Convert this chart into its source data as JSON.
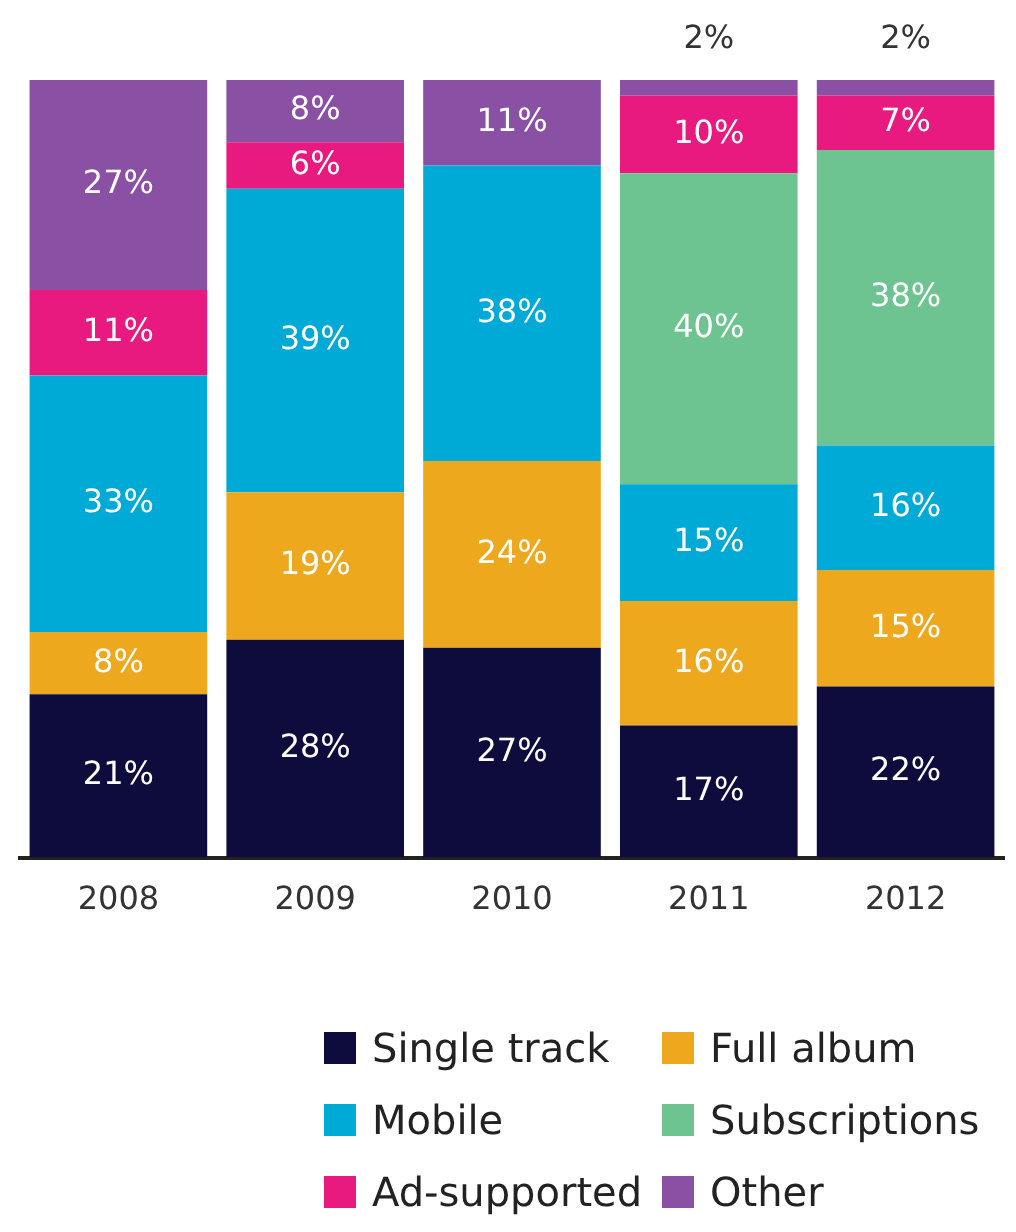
{
  "chart_data": {
    "type": "bar",
    "stacked": true,
    "legend": "bottom",
    "tick_labels": "x",
    "ylim": [
      0,
      100
    ],
    "grid": false,
    "categories": [
      "2008",
      "2009",
      "2010",
      "2011",
      "2012"
    ],
    "series": [
      {
        "name": "Single track",
        "color": "#0d0c3d",
        "values": [
          21,
          28,
          27,
          17,
          22
        ],
        "value_labels": [
          "21%",
          "28%",
          "27%",
          "17%",
          "22%"
        ]
      },
      {
        "name": "Full album",
        "color": "#eea81d",
        "values": [
          8,
          19,
          24,
          16,
          15
        ],
        "value_labels": [
          "8%",
          "19%",
          "24%",
          "16%",
          "15%"
        ]
      },
      {
        "name": "Mobile",
        "color": "#00aad6",
        "values": [
          33,
          39,
          38,
          15,
          16
        ],
        "value_labels": [
          "33%",
          "39%",
          "38%",
          "15%",
          "16%"
        ]
      },
      {
        "name": "Subscriptions",
        "color": "#6ec491",
        "values": [
          null,
          null,
          null,
          40,
          38
        ],
        "value_labels": [
          null,
          null,
          null,
          "40%",
          "38%"
        ]
      },
      {
        "name": "Ad-supported",
        "color": "#e8197f",
        "values": [
          11,
          6,
          null,
          10,
          7
        ],
        "value_labels": [
          "11%",
          "6%",
          null,
          "10%",
          "7%"
        ]
      },
      {
        "name": "Other",
        "color": "#8a50a3",
        "values": [
          27,
          8,
          11,
          2,
          2
        ],
        "value_labels": [
          "27%",
          "8%",
          "11%",
          "2%",
          "2%"
        ]
      }
    ]
  }
}
